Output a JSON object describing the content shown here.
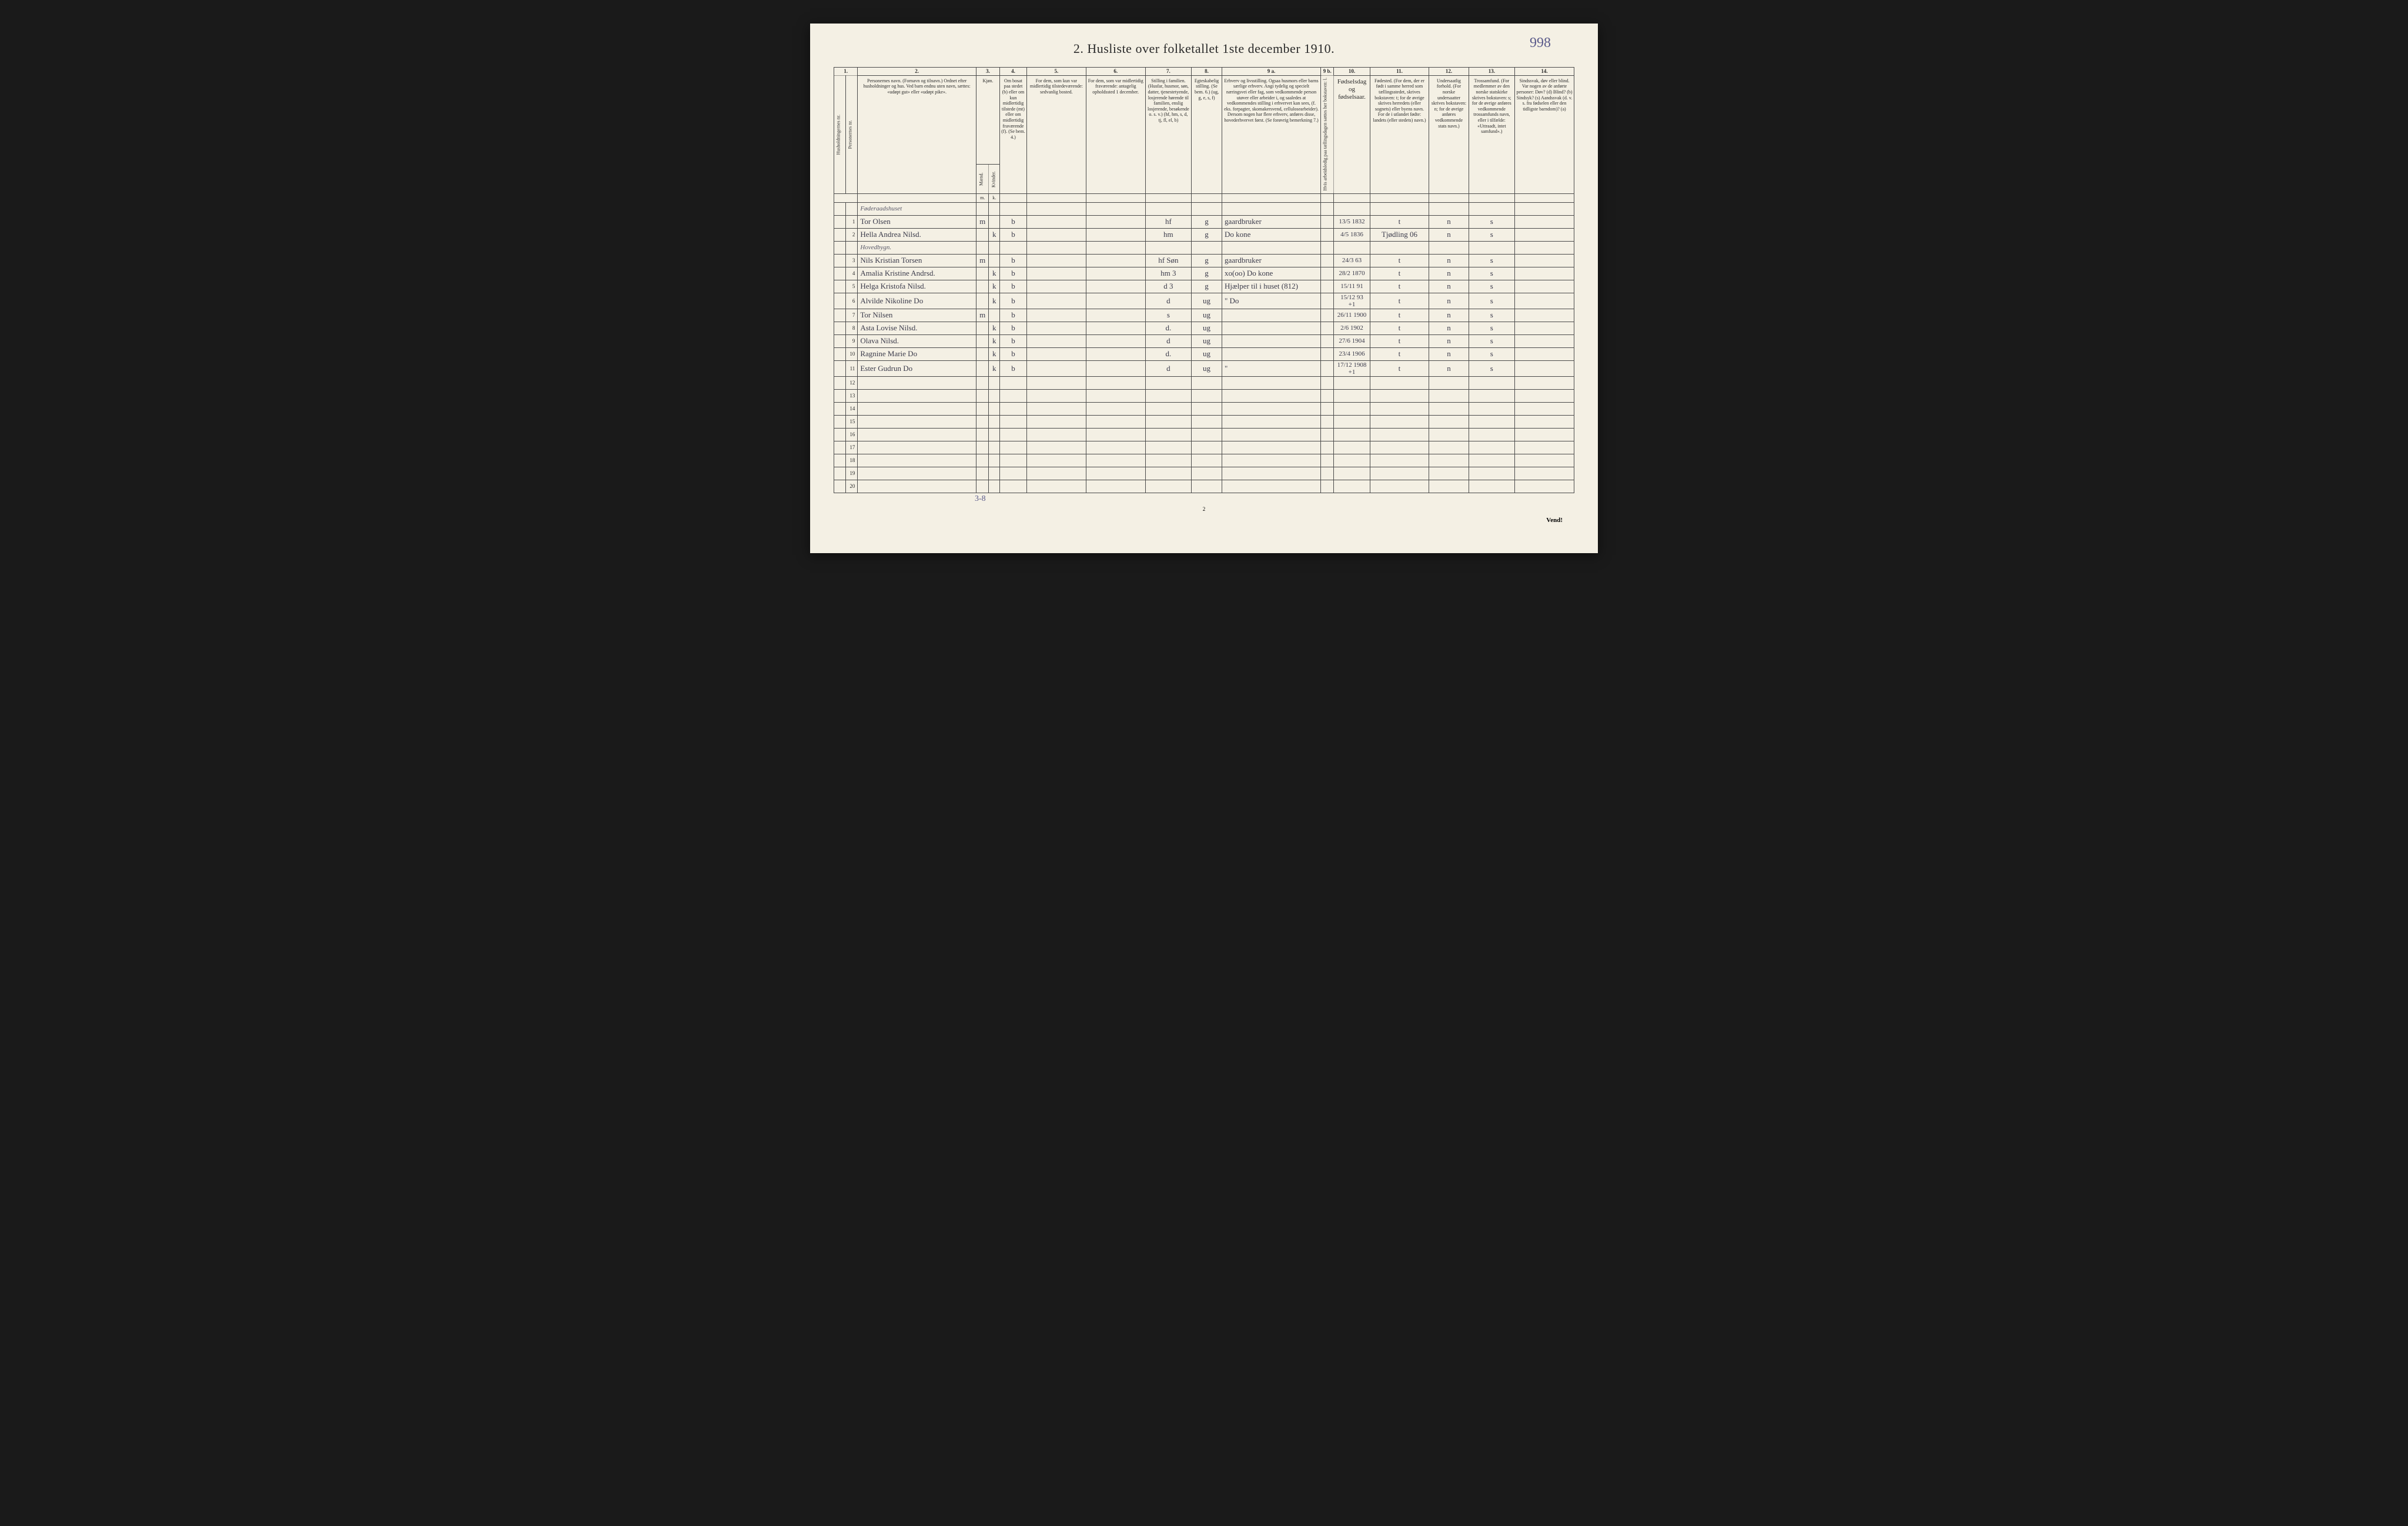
{
  "page_number": "998",
  "title": "2. Husliste over folketallet 1ste december 1910.",
  "footer_page": "2",
  "footer_turn": "Vend!",
  "bottom_annotation": "3-8",
  "columns": {
    "nums": [
      "1.",
      "2.",
      "3.",
      "4.",
      "5.",
      "6.",
      "7.",
      "8.",
      "9 a.",
      "9 b.",
      "10.",
      "11.",
      "12.",
      "13.",
      "14."
    ],
    "h1": "Husholdningernes nr.",
    "h1b": "Personernes nr.",
    "h2": "Personernes navn.\n(Fornavn og tilnavn.)\nOrdnet efter husholdninger og hus.\nVed barn endnu uten navn, sættes: «udøpt gut» eller «udøpt pike».",
    "h3": "Kjøn.",
    "h3a": "Mænd.",
    "h3b": "Kvinder.",
    "h4": "Om bosat paa stedet (b) eller om kun midlertidig tilstede (mt) eller om midlertidig fraværende (f).\n(Se bem. 4.)",
    "h5": "For dem, som kun var midlertidig tilstedeværende:\nsedvanlig bosted.",
    "h6": "For dem, som var midlertidig fraværende:\nantagelig opholdssted 1 december.",
    "h7": "Stilling i familien.\n(Husfar, husmor, søn, datter, tjenestetyende, losjerende hørende til familien, enslig losjerende, besøkende o. s. v.)\n(hf, hm, s, d, tj, fl, el, b)",
    "h8": "Egteskabelig stilling.\n(Se bem. 6.)\n(ug, g, e, s, f)",
    "h9a": "Erhverv og livsstilling.\nOgsaa husmors eller barns særlige erhverv. Angi tydelig og specielt næringsvei eller fag, som vedkommende person utøver eller arbeider i, og saaledes at vedkommendes stilling i erhvervet kan sees, (f. eks. forpagter, skomakersvend, cellulosearbeider). Dersom nogen har flere erhverv, anføres disse, hovederhvervet først.\n(Se forøvrig bemerkning 7.)",
    "h9b": "Hvis arbeidsledig paa tællingsdagen sættes her bokstaven: l.",
    "h10": "Fødselsdag og fødselsaar.",
    "h11": "Fødested.\n(For dem, der er født i samme herred som tællingsstedet, skrives bokstaven: t; for de øvrige skrives herredets (eller sognets) eller byens navn. For de i utlandet fødte: landets (eller stedets) navn.)",
    "h12": "Undersaatlig forhold.\n(For norske undersaatter skrives bokstaven: n; for de øvrige anføres vedkommende stats navn.)",
    "h13": "Trossamfund.\n(For medlemmer av den norske statskirke skrives bokstaven: s; for de øvrige anføres vedkommende trossamfunds navn, eller i tilfælde: «Uttraadt, intet samfund».)",
    "h14": "Sindssvak, døv eller blind.\nVar nogen av de anførte personer:\nDøv? (d)\nBlind? (b)\nSindsyk? (s)\nAandssvak (d. v. s. fra fødselen eller den tidligste barndom)? (a)"
  },
  "sections": {
    "s1": "Føderaadshuset",
    "s2": "Hovedbygn."
  },
  "rows": [
    {
      "n": "1",
      "name": "Tor Olsen",
      "m": "m",
      "k": "",
      "res": "b",
      "fam": "hf",
      "mar": "g",
      "occ": "gaardbruker",
      "bd": "13/5 1832",
      "bp": "t",
      "nat": "n",
      "rel": "s"
    },
    {
      "n": "2",
      "name": "Hella Andrea Nilsd.",
      "m": "",
      "k": "k",
      "res": "b",
      "fam": "hm",
      "mar": "g",
      "occ": "Do kone",
      "bd": "4/5 1836",
      "bp": "Tjødling 06",
      "nat": "n",
      "rel": "s"
    },
    {
      "n": "3",
      "name": "Nils Kristian Torsen",
      "m": "m",
      "k": "",
      "res": "b",
      "fam": "hf Søn",
      "mar": "g",
      "occ": "gaardbruker",
      "bd": "24/3 63",
      "bp": "t",
      "nat": "n",
      "rel": "s"
    },
    {
      "n": "4",
      "name": "Amalia Kristine Andrsd.",
      "m": "",
      "k": "k",
      "res": "b",
      "fam": "hm  3",
      "mar": "g",
      "occ": "xo(oo) Do kone",
      "bd": "28/2 1870",
      "bp": "t",
      "nat": "n",
      "rel": "s"
    },
    {
      "n": "5",
      "name": "Helga Kristofa Nilsd.",
      "m": "",
      "k": "k",
      "res": "b",
      "fam": "d  3",
      "mar": "g",
      "occ": "Hjælper til i huset (812)",
      "bd": "15/11 91",
      "bp": "t",
      "nat": "n",
      "rel": "s"
    },
    {
      "n": "6",
      "name": "Alvilde Nikoline Do",
      "m": "",
      "k": "k",
      "res": "b",
      "fam": "d",
      "mar": "ug",
      "occ": "\" Do",
      "bd": "15/12 93 +1",
      "bp": "t",
      "nat": "n",
      "rel": "s"
    },
    {
      "n": "7",
      "name": "Tor Nilsen",
      "m": "m",
      "k": "",
      "res": "b",
      "fam": "s",
      "mar": "ug",
      "occ": "",
      "bd": "26/11 1900",
      "bp": "t",
      "nat": "n",
      "rel": "s"
    },
    {
      "n": "8",
      "name": "Asta Lovise Nilsd.",
      "m": "",
      "k": "k",
      "res": "b",
      "fam": "d.",
      "mar": "ug",
      "occ": "",
      "bd": "2/6 1902",
      "bp": "t",
      "nat": "n",
      "rel": "s"
    },
    {
      "n": "9",
      "name": "Olava Nilsd.",
      "m": "",
      "k": "k",
      "res": "b",
      "fam": "d",
      "mar": "ug",
      "occ": "",
      "bd": "27/6 1904",
      "bp": "t",
      "nat": "n",
      "rel": "s"
    },
    {
      "n": "10",
      "name": "Ragnine Marie Do",
      "m": "",
      "k": "k",
      "res": "b",
      "fam": "d.",
      "mar": "ug",
      "occ": "",
      "bd": "23/4 1906",
      "bp": "t",
      "nat": "n",
      "rel": "s"
    },
    {
      "n": "11",
      "name": "Ester Gudrun Do",
      "m": "",
      "k": "k",
      "res": "b",
      "fam": "d",
      "mar": "ug",
      "occ": "\"",
      "bd": "17/12 1908 +1",
      "bp": "t",
      "nat": "n",
      "rel": "s"
    }
  ],
  "empty_rows": [
    "12",
    "13",
    "14",
    "15",
    "16",
    "17",
    "18",
    "19",
    "20"
  ]
}
